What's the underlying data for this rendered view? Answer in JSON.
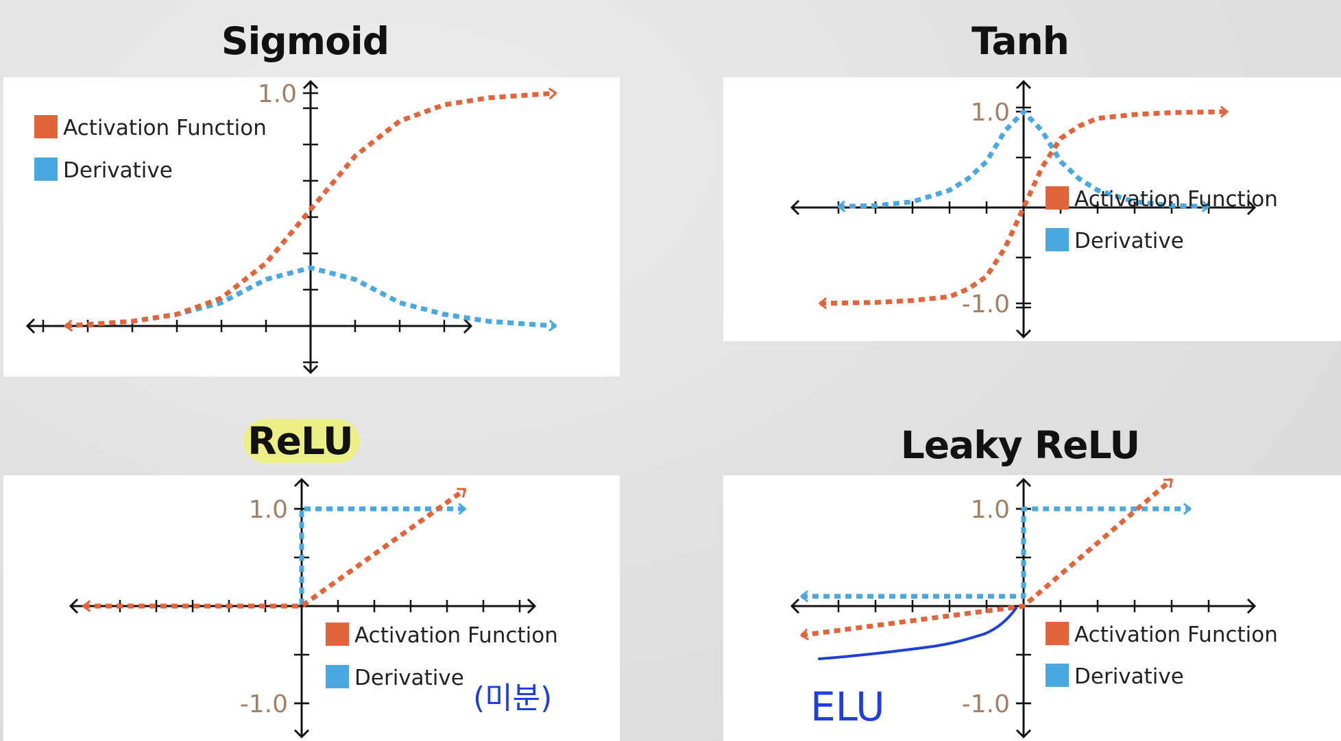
{
  "colors": {
    "activation": "#e2643a",
    "derivative": "#4aa8e0",
    "axis": "#111111",
    "tick_label": "#a08066",
    "handwriting": "#1e3fd8",
    "highlight": "#ecef7a"
  },
  "legend_labels": {
    "activation": "Activation Function",
    "derivative": "Derivative"
  },
  "annotations": {
    "relu_note": "(미분)",
    "elu_note": "ELU"
  },
  "chart_data": [
    {
      "type": "line",
      "title": "Sigmoid",
      "xlim": [
        -6,
        6
      ],
      "ylim": [
        -0.4,
        1.0
      ],
      "ytick_labels": [
        "1.0"
      ],
      "legend_position": "top-left",
      "series": [
        {
          "name": "Activation Function",
          "color": "#e2643a",
          "x": [
            -5.5,
            -4,
            -3,
            -2,
            -1,
            0,
            1,
            2,
            3,
            4,
            5.5
          ],
          "y": [
            0.0,
            0.02,
            0.05,
            0.12,
            0.27,
            0.5,
            0.73,
            0.88,
            0.95,
            0.98,
            1.0
          ]
        },
        {
          "name": "Derivative",
          "color": "#4aa8e0",
          "x": [
            -5.5,
            -4,
            -3,
            -2,
            -1,
            0,
            1,
            2,
            3,
            4,
            5.5
          ],
          "y": [
            0.0,
            0.02,
            0.05,
            0.1,
            0.2,
            0.25,
            0.2,
            0.1,
            0.05,
            0.02,
            0.0
          ]
        }
      ]
    },
    {
      "type": "line",
      "title": "Tanh",
      "xlim": [
        -6,
        6
      ],
      "ylim": [
        -1.2,
        1.2
      ],
      "ytick_labels": [
        "1.0",
        "-1.0"
      ],
      "legend_position": "bottom-right",
      "series": [
        {
          "name": "Activation Function",
          "color": "#e2643a",
          "x": [
            -5.5,
            -4,
            -3,
            -2,
            -1.5,
            -1,
            -0.5,
            0,
            0.5,
            1,
            1.5,
            2,
            3,
            4,
            5.5
          ],
          "y": [
            -1.0,
            -0.99,
            -0.97,
            -0.93,
            -0.85,
            -0.72,
            -0.42,
            0,
            0.42,
            0.72,
            0.85,
            0.93,
            0.97,
            0.99,
            1.0
          ]
        },
        {
          "name": "Derivative",
          "color": "#4aa8e0",
          "x": [
            -5,
            -4,
            -3,
            -2,
            -1.5,
            -1,
            -0.5,
            0,
            0.5,
            1,
            1.5,
            2,
            3,
            4,
            5
          ],
          "y": [
            0.01,
            0.02,
            0.06,
            0.18,
            0.3,
            0.48,
            0.8,
            1.0,
            0.8,
            0.48,
            0.3,
            0.18,
            0.06,
            0.02,
            0.01
          ]
        }
      ]
    },
    {
      "type": "line",
      "title": "ReLU",
      "xlim": [
        -6,
        6
      ],
      "ylim": [
        -1.0,
        1.0
      ],
      "ytick_labels": [
        "1.0",
        "-1.0"
      ],
      "legend_position": "bottom-right",
      "series": [
        {
          "name": "Activation Function",
          "color": "#e2643a",
          "x": [
            -6,
            0,
            4.5
          ],
          "y": [
            0,
            0,
            1.2
          ]
        },
        {
          "name": "Derivative",
          "color": "#4aa8e0",
          "x": [
            -6,
            0,
            0,
            4.5
          ],
          "y": [
            0,
            0,
            1,
            1
          ]
        }
      ]
    },
    {
      "type": "line",
      "title": "Leaky ReLU",
      "xlim": [
        -6,
        6
      ],
      "ylim": [
        -1.0,
        1.0
      ],
      "ytick_labels": [
        "1.0",
        "-1.0"
      ],
      "legend_position": "bottom-right",
      "series": [
        {
          "name": "Activation Function",
          "color": "#e2643a",
          "x": [
            -6,
            0,
            4
          ],
          "y": [
            -0.3,
            0,
            1.3
          ]
        },
        {
          "name": "Derivative",
          "color": "#4aa8e0",
          "x": [
            -6,
            0,
            0,
            4.5
          ],
          "y": [
            0.1,
            0.1,
            1,
            1
          ]
        }
      ]
    }
  ]
}
